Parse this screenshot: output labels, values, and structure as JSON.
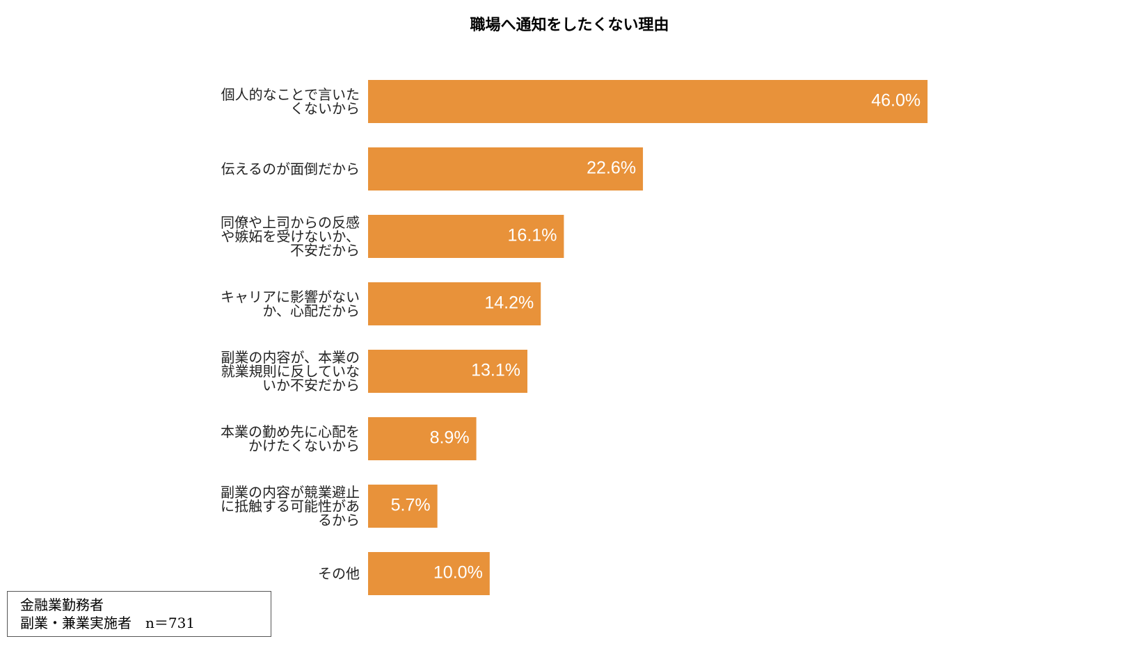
{
  "chart_data": {
    "type": "bar",
    "orientation": "horizontal",
    "title": "職場へ通知をしたくない理由",
    "categories": [
      "個人的なことで言いたくないから",
      "伝えるのが面倒だから",
      "同僚や上司からの反感や嫉妬を受けないか、不安だから",
      "キャリアに影響がないか、心配だから",
      "副業の内容が、本業の就業規則に反していないか不安だから",
      "本業の勤め先に心配をかけたくないから",
      "副業の内容が競業避止に抵触する可能性があるから",
      "その他"
    ],
    "values": [
      46.0,
      22.6,
      16.1,
      14.2,
      13.1,
      8.9,
      5.7,
      10.0
    ],
    "value_labels": [
      "46.0%",
      "22.6%",
      "16.1%",
      "14.2%",
      "13.1%",
      "8.9%",
      "5.7%",
      "10.0%"
    ],
    "color": "#e8923a",
    "note": [
      "金融業勤務者",
      "副業・兼業実施者　n＝731"
    ]
  }
}
